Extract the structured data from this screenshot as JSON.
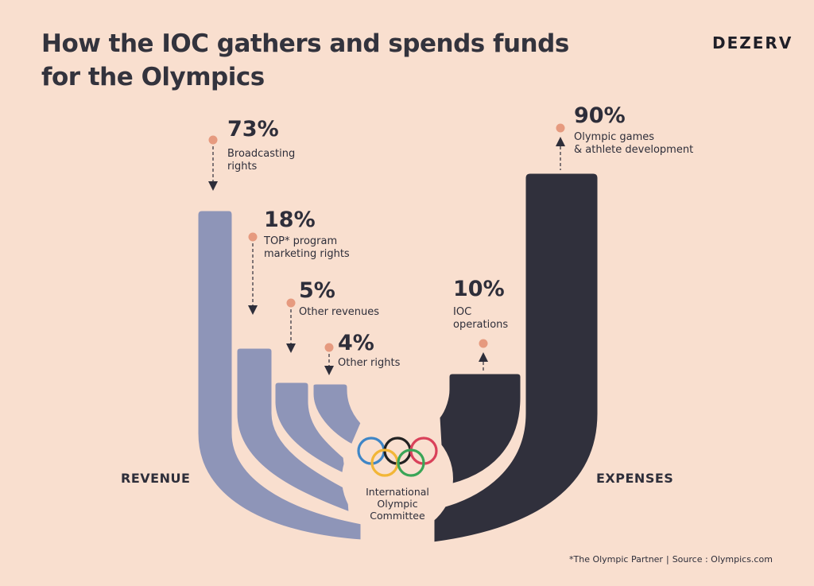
{
  "title_line1": "How the IOC gathers and spends funds",
  "title_line2": "for the Olympics",
  "brand": "DEZERV",
  "revenue_label": "REVENUE",
  "expenses_label": "EXPENSES",
  "center": {
    "line1": "International",
    "line2": "Olympic",
    "line3": "Committee",
    "ring_colors": [
      "#3f86c6",
      "#f2b637",
      "#222222",
      "#3aa557",
      "#d9415a"
    ]
  },
  "colors": {
    "background": "#f9dfcf",
    "revenue": "#8e95b8",
    "expenses": "#30303c",
    "marker": "#e69a7f"
  },
  "revenue": [
    {
      "value": "73%",
      "line1": "Broadcasting",
      "line2": "rights"
    },
    {
      "value": "18%",
      "line1": "TOP* program",
      "line2": "marketing rights"
    },
    {
      "value": "5%",
      "line1": "Other revenues",
      "line2": ""
    },
    {
      "value": "4%",
      "line1": "Other rights",
      "line2": ""
    }
  ],
  "expenses": [
    {
      "value": "90%",
      "line1": "Olympic games",
      "line2": "& athlete development"
    },
    {
      "value": "10%",
      "line1": "IOC",
      "line2": "operations"
    }
  ],
  "footnote": {
    "definition": "*The Olympic Partner",
    "separator": "|",
    "source": "Source : Olympics.com"
  }
}
